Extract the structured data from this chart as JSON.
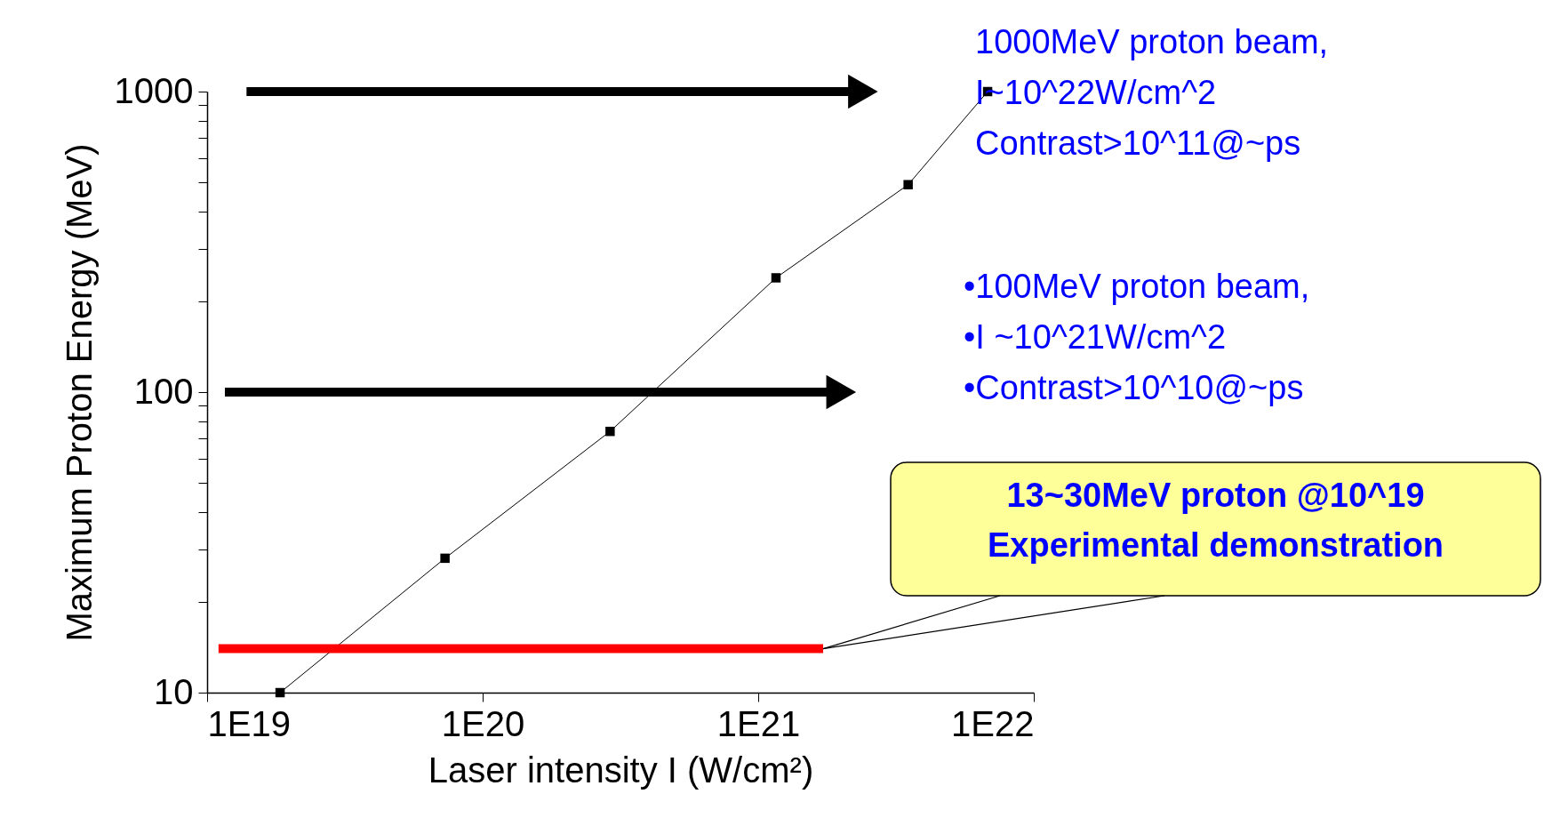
{
  "chart_data": {
    "type": "line",
    "xlabel": "Laser intensity I (W/cm²)",
    "ylabel": "Maximum Proton Energy (MeV)",
    "log": "xy",
    "xlim": [
      1e+19,
      1e+22
    ],
    "ylim": [
      10,
      1000
    ],
    "xticks": [
      {
        "value": 1e+19,
        "label": "1E19"
      },
      {
        "value": 1e+20,
        "label": "1E20"
      },
      {
        "value": 1e+21,
        "label": "1E21"
      },
      {
        "value": 1e+22,
        "label": "1E22"
      }
    ],
    "yticks": [
      10,
      {
        "value": 20,
        "label": null
      },
      {
        "value": 30,
        "label": null
      },
      {
        "value": 40,
        "label": null
      },
      {
        "value": 50,
        "label": null
      },
      {
        "value": 60,
        "label": null
      },
      {
        "value": 70,
        "label": null
      },
      {
        "value": 80,
        "label": null
      },
      {
        "value": 90,
        "label": null
      },
      100,
      {
        "value": 200,
        "label": null
      },
      {
        "value": 300,
        "label": null
      },
      {
        "value": 400,
        "label": null
      },
      {
        "value": 500,
        "label": null
      },
      {
        "value": 600,
        "label": null
      },
      {
        "value": 700,
        "label": null
      },
      {
        "value": 800,
        "label": null
      },
      {
        "value": 900,
        "label": null
      },
      1000
    ],
    "grid": false,
    "series": [
      {
        "color": "#000000",
        "marker": "square",
        "x": [
          1.84e+19,
          7.3e+19,
          2.9e+20,
          1.16e+21,
          3.5e+21,
          6.8e+21
        ],
        "values": [
          10,
          28,
          74,
          240,
          490,
          1000
        ]
      },
      {
        "color": "#000000",
        "marker": "triangle",
        "x": [
          1.39e+19,
          2.4e+21
        ],
        "values": [
          1000,
          1000
        ]
      },
      {
        "color": "#000000",
        "marker": "triangle",
        "x": [
          1.16e+19,
          2e+21
        ],
        "values": [
          100,
          100
        ]
      },
      {
        "color": "#ff0000",
        "marker": "none",
        "x": [
          1.1e+19,
          1.72e+21
        ],
        "values": [
          14,
          14
        ]
      }
    ],
    "annotations": [
      "1000MeV proton beam,\nI~10^22W/cm^2\nContrast>10^11@~ps",
      "•100MeV proton beam,\n•I ~10^21W/cm^2\n•Contrast>10^10@~ps",
      {
        "text": "13~30MeV proton @10^19\nExperimental demonstration"
      }
    ]
  }
}
